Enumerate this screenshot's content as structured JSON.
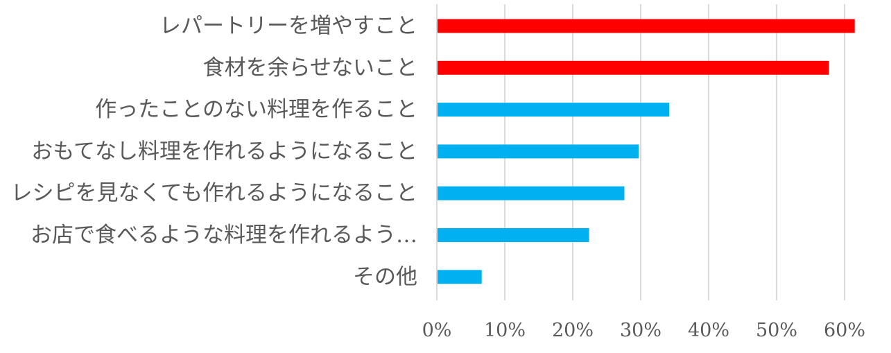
{
  "chart_data": {
    "type": "bar",
    "orientation": "horizontal",
    "categories": [
      "レパートリーを増やすこと",
      "食材を余らせないこと",
      "作ったことのない料理を作ること",
      "おもてなし料理を作れるようになること",
      "レシピを見なくても作れるようになること",
      "お店で食べるような料理を作れるよう…",
      "その他"
    ],
    "values": [
      61.5,
      57.7,
      34.2,
      29.7,
      27.6,
      22.4,
      6.6
    ],
    "colors": [
      "#ff0000",
      "#ff0000",
      "#00b0f0",
      "#00b0f0",
      "#00b0f0",
      "#00b0f0",
      "#00b0f0"
    ],
    "xlim": [
      0,
      60
    ],
    "xticks": [
      0,
      10,
      20,
      30,
      40,
      50,
      60
    ],
    "tick_suffix": "%",
    "grid": true,
    "title": "",
    "xlabel": "",
    "ylabel": ""
  }
}
